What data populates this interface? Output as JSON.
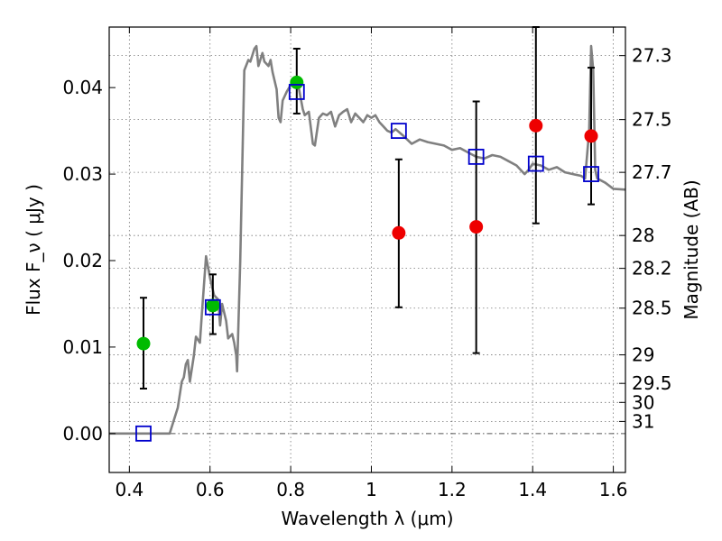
{
  "chart_data": {
    "type": "scatter",
    "xlabel": "Wavelength λ (μm)",
    "ylabel": "Flux F_ν ( μJy )",
    "ylabel_right": "Magnitude (AB)",
    "xlim": [
      0.35,
      1.63
    ],
    "ylim": [
      -0.0045,
      0.047
    ],
    "x_ticks": [
      0.4,
      0.6,
      0.8,
      1.0,
      1.2,
      1.4,
      1.6
    ],
    "x_tick_labels": [
      "0.4",
      "0.6",
      "0.8",
      "1",
      "1.2",
      "1.4",
      "1.6"
    ],
    "y_ticks": [
      0.0,
      0.01,
      0.02,
      0.03,
      0.04
    ],
    "y_tick_labels": [
      "0.00",
      "0.01",
      "0.02",
      "0.03",
      "0.04"
    ],
    "right_ticks": [
      {
        "label": "27.3",
        "flux": 0.0437
      },
      {
        "label": "27.5",
        "flux": 0.0363
      },
      {
        "label": "27.7",
        "flux": 0.0302
      },
      {
        "label": "28",
        "flux": 0.0229
      },
      {
        "label": "28.2",
        "flux": 0.0191
      },
      {
        "label": "28.5",
        "flux": 0.0145
      },
      {
        "label": "29",
        "flux": 0.0091
      },
      {
        "label": "29.5",
        "flux": 0.0058
      },
      {
        "label": "30",
        "flux": 0.0036
      },
      {
        "label": "31",
        "flux": 0.0014
      }
    ],
    "grid": true,
    "colors": {
      "model": "#808080",
      "green_points": "#00bb00",
      "red_points": "#ee0000",
      "model_photometry": "#0000cc",
      "errorbars": "#000000",
      "zero_line": "#555555"
    },
    "model_spectrum": [
      [
        0.35,
        0.0
      ],
      [
        0.5,
        0.0
      ],
      [
        0.52,
        0.003
      ],
      [
        0.53,
        0.006
      ],
      [
        0.535,
        0.0065
      ],
      [
        0.54,
        0.008
      ],
      [
        0.545,
        0.0085
      ],
      [
        0.55,
        0.006
      ],
      [
        0.56,
        0.009
      ],
      [
        0.565,
        0.0112
      ],
      [
        0.575,
        0.0105
      ],
      [
        0.58,
        0.014
      ],
      [
        0.59,
        0.0205
      ],
      [
        0.6,
        0.018
      ],
      [
        0.61,
        0.016
      ],
      [
        0.62,
        0.0155
      ],
      [
        0.625,
        0.0125
      ],
      [
        0.63,
        0.015
      ],
      [
        0.64,
        0.013
      ],
      [
        0.645,
        0.011
      ],
      [
        0.655,
        0.0115
      ],
      [
        0.66,
        0.0105
      ],
      [
        0.665,
        0.009
      ],
      [
        0.667,
        0.0072
      ],
      [
        0.675,
        0.02
      ],
      [
        0.685,
        0.042
      ],
      [
        0.695,
        0.0432
      ],
      [
        0.7,
        0.043
      ],
      [
        0.71,
        0.0445
      ],
      [
        0.715,
        0.0448
      ],
      [
        0.72,
        0.0425
      ],
      [
        0.73,
        0.044
      ],
      [
        0.735,
        0.043
      ],
      [
        0.745,
        0.0425
      ],
      [
        0.75,
        0.0432
      ],
      [
        0.755,
        0.0418
      ],
      [
        0.765,
        0.0398
      ],
      [
        0.77,
        0.0365
      ],
      [
        0.775,
        0.036
      ],
      [
        0.78,
        0.0385
      ],
      [
        0.79,
        0.0395
      ],
      [
        0.8,
        0.0403
      ],
      [
        0.81,
        0.041
      ],
      [
        0.82,
        0.04
      ],
      [
        0.83,
        0.0375
      ],
      [
        0.835,
        0.0368
      ],
      [
        0.845,
        0.0372
      ],
      [
        0.855,
        0.0335
      ],
      [
        0.86,
        0.0333
      ],
      [
        0.87,
        0.0365
      ],
      [
        0.88,
        0.037
      ],
      [
        0.89,
        0.0368
      ],
      [
        0.9,
        0.0372
      ],
      [
        0.91,
        0.0355
      ],
      [
        0.92,
        0.0368
      ],
      [
        0.93,
        0.0372
      ],
      [
        0.94,
        0.0375
      ],
      [
        0.95,
        0.036
      ],
      [
        0.96,
        0.037
      ],
      [
        0.97,
        0.0365
      ],
      [
        0.98,
        0.036
      ],
      [
        0.99,
        0.0368
      ],
      [
        1.0,
        0.0365
      ],
      [
        1.01,
        0.0368
      ],
      [
        1.02,
        0.036
      ],
      [
        1.03,
        0.0355
      ],
      [
        1.04,
        0.035
      ],
      [
        1.05,
        0.0348
      ],
      [
        1.06,
        0.0352
      ],
      [
        1.08,
        0.0344
      ],
      [
        1.1,
        0.0335
      ],
      [
        1.12,
        0.034
      ],
      [
        1.14,
        0.0337
      ],
      [
        1.16,
        0.0335
      ],
      [
        1.18,
        0.0333
      ],
      [
        1.2,
        0.0328
      ],
      [
        1.22,
        0.033
      ],
      [
        1.24,
        0.0325
      ],
      [
        1.26,
        0.032
      ],
      [
        1.28,
        0.0318
      ],
      [
        1.3,
        0.0322
      ],
      [
        1.32,
        0.032
      ],
      [
        1.34,
        0.0315
      ],
      [
        1.36,
        0.031
      ],
      [
        1.38,
        0.03
      ],
      [
        1.39,
        0.0305
      ],
      [
        1.4,
        0.0312
      ],
      [
        1.42,
        0.031
      ],
      [
        1.44,
        0.0305
      ],
      [
        1.46,
        0.0308
      ],
      [
        1.48,
        0.0302
      ],
      [
        1.5,
        0.03
      ],
      [
        1.52,
        0.0298
      ],
      [
        1.53,
        0.0295
      ],
      [
        1.54,
        0.035
      ],
      [
        1.545,
        0.0448
      ],
      [
        1.55,
        0.042
      ],
      [
        1.555,
        0.0305
      ],
      [
        1.56,
        0.0295
      ],
      [
        1.58,
        0.029
      ],
      [
        1.6,
        0.0283
      ],
      [
        1.63,
        0.0282
      ]
    ],
    "green_points": [
      {
        "x": 0.435,
        "y": 0.0104,
        "err_low": 0.0052,
        "err_high": 0.0053
      },
      {
        "x": 0.607,
        "y": 0.0148,
        "err_low": 0.0033,
        "err_high": 0.0036
      },
      {
        "x": 0.815,
        "y": 0.0406,
        "err_low": 0.0036,
        "err_high": 0.0039
      }
    ],
    "red_points": [
      {
        "x": 1.068,
        "y": 0.0232,
        "err_low": 0.0086,
        "err_high": 0.0085
      },
      {
        "x": 1.26,
        "y": 0.0239,
        "err_low": 0.0146,
        "err_high": 0.0145
      },
      {
        "x": 1.408,
        "y": 0.0356,
        "err_low": 0.0113,
        "err_high": 0.0114
      },
      {
        "x": 1.545,
        "y": 0.0344,
        "err_low": 0.0079,
        "err_high": 0.0079
      }
    ],
    "model_photometry": [
      {
        "x": 0.435,
        "y": 0.0
      },
      {
        "x": 0.607,
        "y": 0.0146
      },
      {
        "x": 0.815,
        "y": 0.0395
      },
      {
        "x": 1.068,
        "y": 0.035
      },
      {
        "x": 1.26,
        "y": 0.032
      },
      {
        "x": 1.408,
        "y": 0.0312
      },
      {
        "x": 1.545,
        "y": 0.03
      }
    ]
  }
}
